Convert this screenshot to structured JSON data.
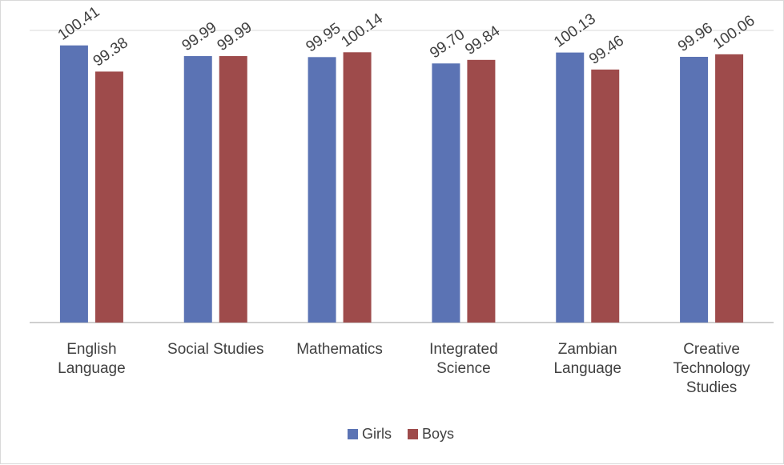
{
  "chart_data": {
    "type": "bar",
    "categories": [
      [
        "English",
        "Language"
      ],
      [
        "Social Studies"
      ],
      [
        "Mathematics"
      ],
      [
        "Integrated",
        "Science"
      ],
      [
        "Zambian",
        "Language"
      ],
      [
        "Creative",
        "Technology",
        "Studies"
      ]
    ],
    "series": [
      {
        "name": "Girls",
        "values": [
          100.41,
          99.99,
          99.95,
          99.7,
          100.13,
          99.96
        ],
        "labels": [
          "100.41",
          "99.99",
          "99.95",
          "99.70",
          "100.13",
          "99.96"
        ],
        "color": "#5b73b4"
      },
      {
        "name": "Boys",
        "values": [
          99.38,
          99.99,
          100.14,
          99.84,
          99.46,
          100.06
        ],
        "labels": [
          "99.38",
          "99.99",
          "100.14",
          "99.84",
          "99.46",
          "100.06"
        ],
        "color": "#9e4b4b"
      }
    ],
    "ylim": [
      89.5,
      101.0
    ],
    "value_axis_visible": false,
    "gridlines": false,
    "legend_position": "bottom",
    "data_labels": "rotated"
  }
}
